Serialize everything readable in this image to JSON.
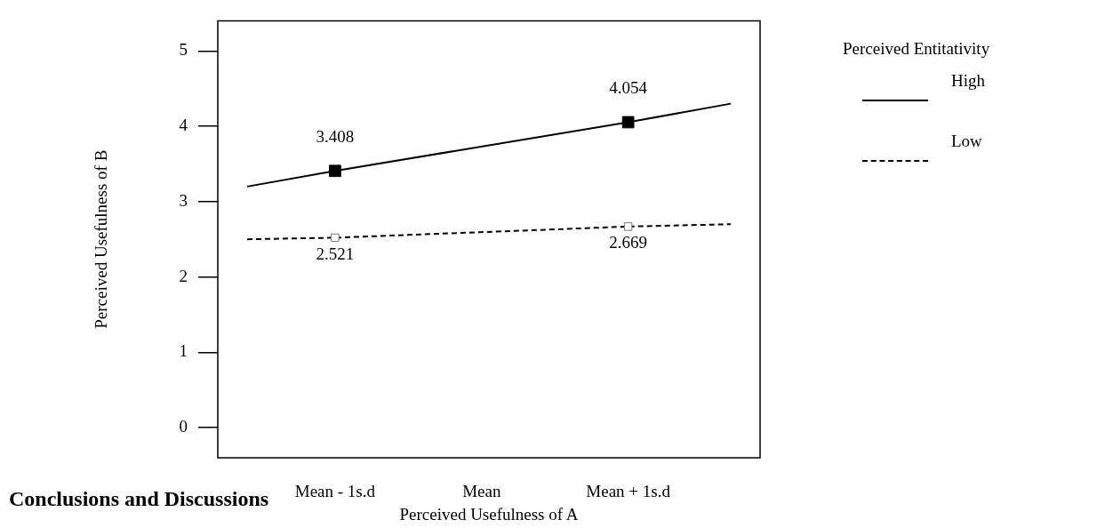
{
  "chart_data": {
    "type": "line",
    "xlabel": "Perceived Usefulness of A",
    "ylabel": "Perceived Usefulness of B",
    "legend_title": "Perceived Entitativity",
    "x": [
      -1.6,
      -1,
      1,
      1.7
    ],
    "xlim": [
      -1.8,
      1.9
    ],
    "xticks": [
      {
        "value": -1,
        "label": "Mean - 1s.d"
      },
      {
        "value": 0,
        "label": "Mean"
      },
      {
        "value": 1,
        "label": "Mean + 1s.d"
      }
    ],
    "ylim": [
      -0.4,
      5.4
    ],
    "yticks": [
      0,
      1,
      2,
      3,
      4,
      5
    ],
    "series": [
      {
        "name": "High",
        "color": "#000000",
        "line_style": "solid",
        "values": [
          3.2,
          3.408,
          4.054,
          4.3
        ],
        "value_labels": [
          null,
          "3.408",
          "4.054",
          null
        ]
      },
      {
        "name": "Low",
        "color": "#000000",
        "line_style": "dashed",
        "values": [
          2.5,
          2.521,
          2.669,
          2.7
        ],
        "value_labels": [
          null,
          "2.521",
          "2.669",
          null
        ]
      }
    ],
    "marker": "square",
    "grid": false,
    "legend": "right",
    "annotations": [
      "Conclusions and Discussions"
    ]
  }
}
